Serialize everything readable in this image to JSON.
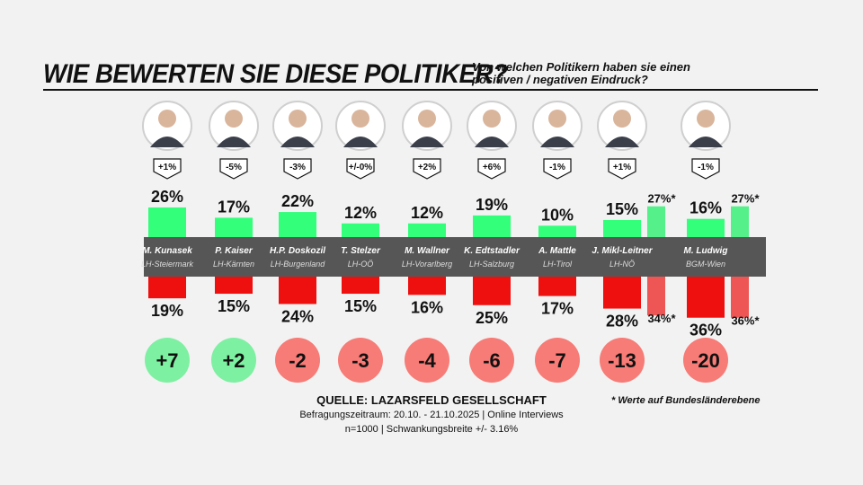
{
  "header": {
    "title": "WIE BEWERTEN SIE DIESE POLITIKER?",
    "subtitle": "Von welchen Politikern haben sie einen positiven / negativen Eindruck?"
  },
  "footer": {
    "source_title": "QUELLE: LAZARSFELD GESELLSCHAFT",
    "line1": "Befragungszeitraum: 20.10. - 21.10.2025 | Online Interviews",
    "line2": "n=1000  |  Schwankungsbreite +/- 3.16%",
    "footnote": "* Werte auf Bundesländerebene"
  },
  "colors": {
    "positive": "#33ff7a",
    "negative": "#ee0f0f",
    "positive_light": "#55f08a",
    "negative_light": "#ee5555",
    "band": "#4a4a4a",
    "badge_positive": "#7ef0a2",
    "badge_negative": "#f77b76"
  },
  "chart_data": {
    "type": "bar",
    "categories": [
      "M. Kunasek",
      "P. Kaiser",
      "H.P. Doskozil",
      "T. Stelzer",
      "M. Wallner",
      "K. Edtstadler",
      "A. Mattle",
      "J. Mikl-Leitner",
      "M. Ludwig"
    ],
    "roles": [
      "LH-Steiermark",
      "LH-Kärnten",
      "LH-Burgenland",
      "LH-OÖ",
      "LH-Vorarlberg",
      "LH-Salzburg",
      "LH-Tirol",
      "LH-NÖ",
      "BGM-Wien"
    ],
    "changes": [
      "+1%",
      "-5%",
      "-3%",
      "+/-0%",
      "+2%",
      "+6%",
      "-1%",
      "+1%",
      "-1%"
    ],
    "series": [
      {
        "name": "positiv",
        "values": [
          26,
          17,
          22,
          12,
          12,
          19,
          10,
          15,
          16
        ]
      },
      {
        "name": "negativ",
        "values": [
          19,
          15,
          24,
          15,
          16,
          25,
          17,
          28,
          36
        ]
      }
    ],
    "balance": [
      "+7",
      "+2",
      "-2",
      "-3",
      "-4",
      "-6",
      "-7",
      "-13",
      "-20"
    ],
    "state_level": {
      "indices": [
        7,
        8
      ],
      "positive": [
        27,
        27
      ],
      "negative": [
        34,
        36
      ],
      "positive_labels": [
        "27%*",
        "27%*"
      ],
      "negative_labels": [
        "34%*",
        "36%*"
      ]
    },
    "value_suffix": "%"
  }
}
